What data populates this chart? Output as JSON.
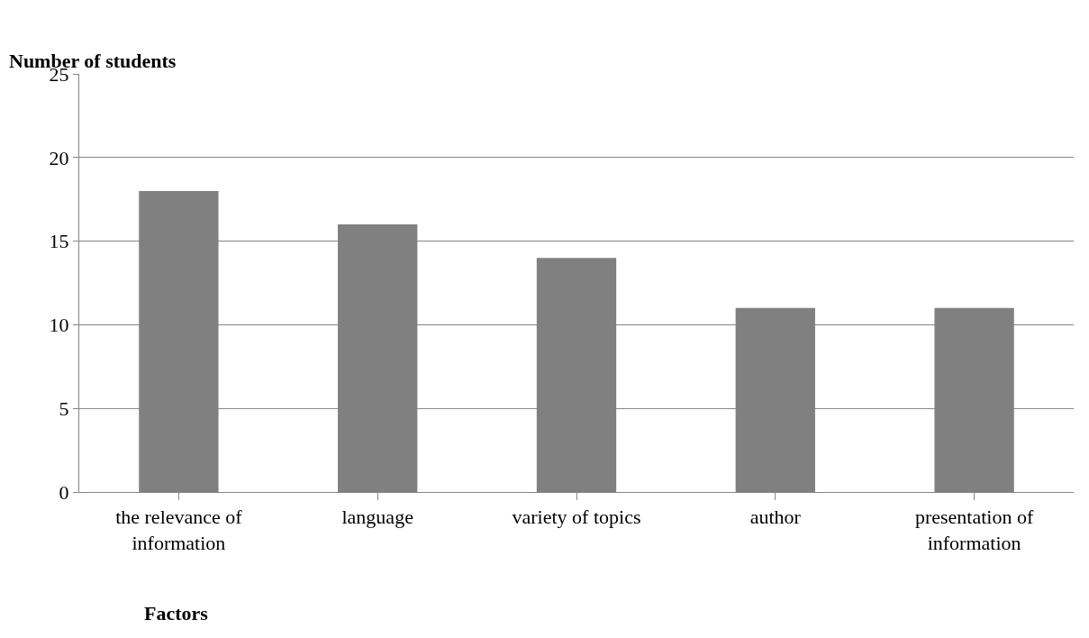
{
  "chart_data": {
    "type": "bar",
    "xlabel": "Factors",
    "ylabel": "Number of students",
    "categories": [
      "the relevance of information",
      "language",
      "variety of topics",
      "author",
      "presentation of information"
    ],
    "values": [
      18,
      16,
      14,
      11,
      11
    ],
    "color": "#808080",
    "ylim": [
      0,
      25
    ],
    "yticks": [
      0,
      5,
      10,
      15,
      20,
      25
    ],
    "grid": "y",
    "legend": false
  }
}
